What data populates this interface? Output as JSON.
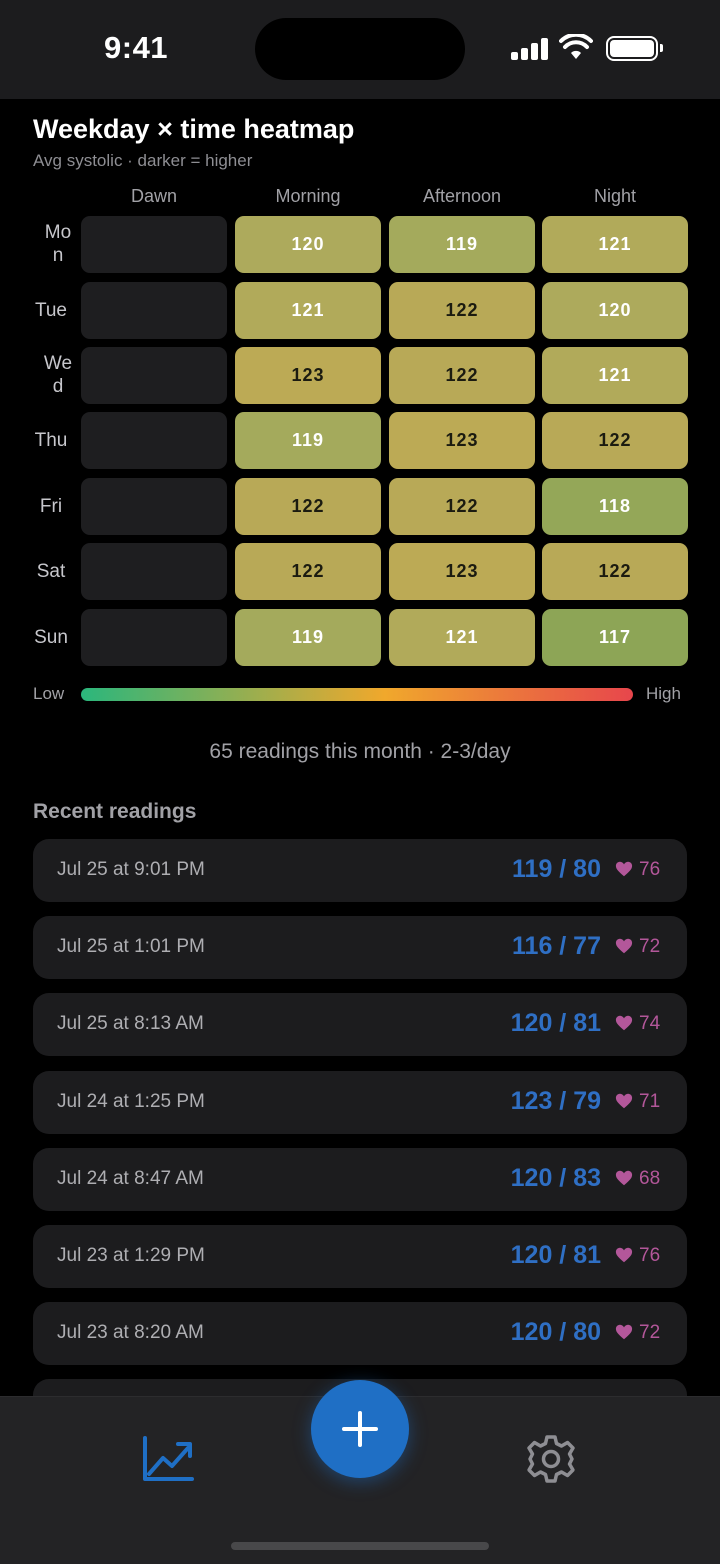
{
  "status_bar": {
    "time": "9:41"
  },
  "heatmap": {
    "title": "Weekday × time heatmap",
    "subtitle": "Avg systolic · darker = higher",
    "columns": [
      "Dawn",
      "Morning",
      "Afternoon",
      "Night"
    ],
    "rows": [
      {
        "day": "Mon",
        "values": [
          null,
          "120",
          "119",
          "121"
        ]
      },
      {
        "day": "Tue",
        "values": [
          null,
          "121",
          "122",
          "120"
        ]
      },
      {
        "day": "Wed",
        "values": [
          null,
          "123",
          "122",
          "121"
        ]
      },
      {
        "day": "Thu",
        "values": [
          null,
          "119",
          "123",
          "122"
        ]
      },
      {
        "day": "Fri",
        "values": [
          null,
          "122",
          "122",
          "118"
        ]
      },
      {
        "day": "Sat",
        "values": [
          null,
          "122",
          "123",
          "122"
        ]
      },
      {
        "day": "Sun",
        "values": [
          null,
          "119",
          "121",
          "117"
        ]
      }
    ],
    "legend": {
      "low": "Low",
      "high": "High"
    },
    "colors": {
      "117": "#8da556",
      "118": "#94a758",
      "119": "#a4aa5c",
      "120": "#adaa5c",
      "121": "#b1aa5a",
      "122": "#b8a957",
      "123": "#bcaa55",
      "gradient": [
        "#2bb67c",
        "#f0a82c",
        "#e7464c"
      ]
    }
  },
  "summary": "65 readings this month · 2-3/day",
  "recent": {
    "title": "Recent readings",
    "items": [
      {
        "date": "Jul 25 at 9:01 PM",
        "bp": "119 / 80",
        "pulse": "76"
      },
      {
        "date": "Jul 25 at 1:01 PM",
        "bp": "116 / 77",
        "pulse": "72"
      },
      {
        "date": "Jul 25 at 8:13 AM",
        "bp": "120 / 81",
        "pulse": "74"
      },
      {
        "date": "Jul 24 at 1:25 PM",
        "bp": "123 / 79",
        "pulse": "71"
      },
      {
        "date": "Jul 24 at 8:47 AM",
        "bp": "120 / 83",
        "pulse": "68"
      },
      {
        "date": "Jul 23 at 1:29 PM",
        "bp": "120 / 81",
        "pulse": "76"
      },
      {
        "date": "Jul 23 at 8:20 AM",
        "bp": "120 / 80",
        "pulse": "72"
      }
    ]
  },
  "tab_bar": {
    "icons": [
      "chart-icon",
      "plus-icon",
      "gear-icon"
    ],
    "accent": "#1f6fc5"
  }
}
